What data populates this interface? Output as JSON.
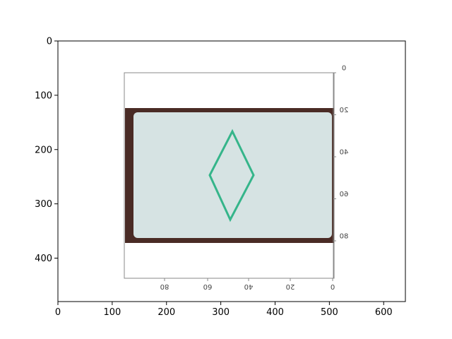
{
  "chart_data": {
    "type": "image",
    "title": "",
    "xlabel": "",
    "ylabel": "",
    "xlim": [
      0,
      640
    ],
    "ylim": [
      480,
      0
    ],
    "x_ticks": [
      "0",
      "100",
      "200",
      "300",
      "400",
      "500",
      "600"
    ],
    "y_ticks": [
      "0",
      "100",
      "200",
      "300",
      "400"
    ],
    "grid": false,
    "image_content": {
      "description_of_marks": "embedded mirrored photo of a rectangular card with a green diamond",
      "card_color": "#d6e3e3",
      "border_color": "#4a2b25",
      "diamond_color": "#35b58a",
      "inner_x_ticks": [
        "80",
        "60",
        "40",
        "20",
        "0"
      ],
      "inner_y_ticks": [
        "0",
        "20",
        "40",
        "60",
        "80"
      ]
    }
  }
}
